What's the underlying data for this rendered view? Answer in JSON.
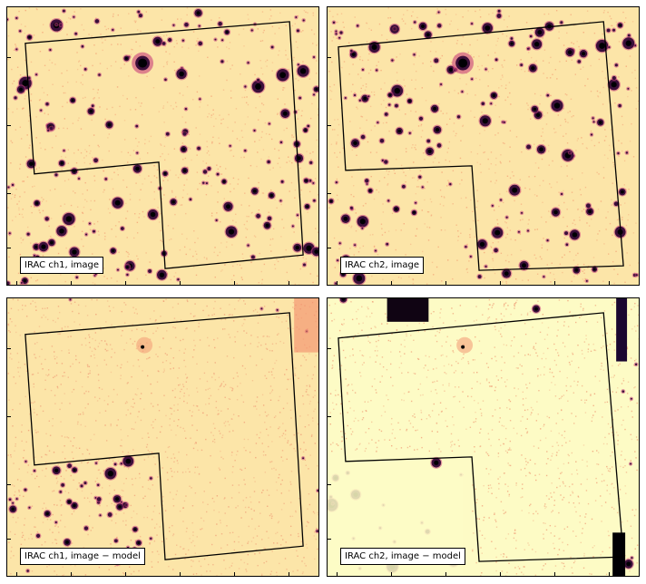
{
  "panels": [
    {
      "id": "ch1-image",
      "label": "IRAC ch1, image",
      "kind": "image",
      "seed": 11,
      "colors": {
        "background": "#fce5a8",
        "noise": "#f4a77a",
        "source": "#3b0f3a",
        "source_core": "#000004"
      }
    },
    {
      "id": "ch2-image",
      "label": "IRAC ch2, image",
      "kind": "image",
      "seed": 29,
      "colors": {
        "background": "#fce5a8",
        "noise": "#f4a77a",
        "source": "#3b0f3a",
        "source_core": "#000004"
      }
    },
    {
      "id": "ch1-residual",
      "label": "IRAC ch1, image − model",
      "kind": "residual",
      "seed": 47,
      "colors": {
        "background": "#fce5a8",
        "noise": "#f0a27a",
        "source": "#3b0f3a",
        "source_core": "#000004"
      }
    },
    {
      "id": "ch2-residual",
      "label": "IRAC ch2, image − model",
      "kind": "residual",
      "seed": 83,
      "colors": {
        "background": "#fdfbc5",
        "noise": "#f0a27a",
        "source": "#3b0f3a",
        "source_core": "#000004"
      }
    }
  ],
  "outline_color": "#000000",
  "colormap": "magma"
}
